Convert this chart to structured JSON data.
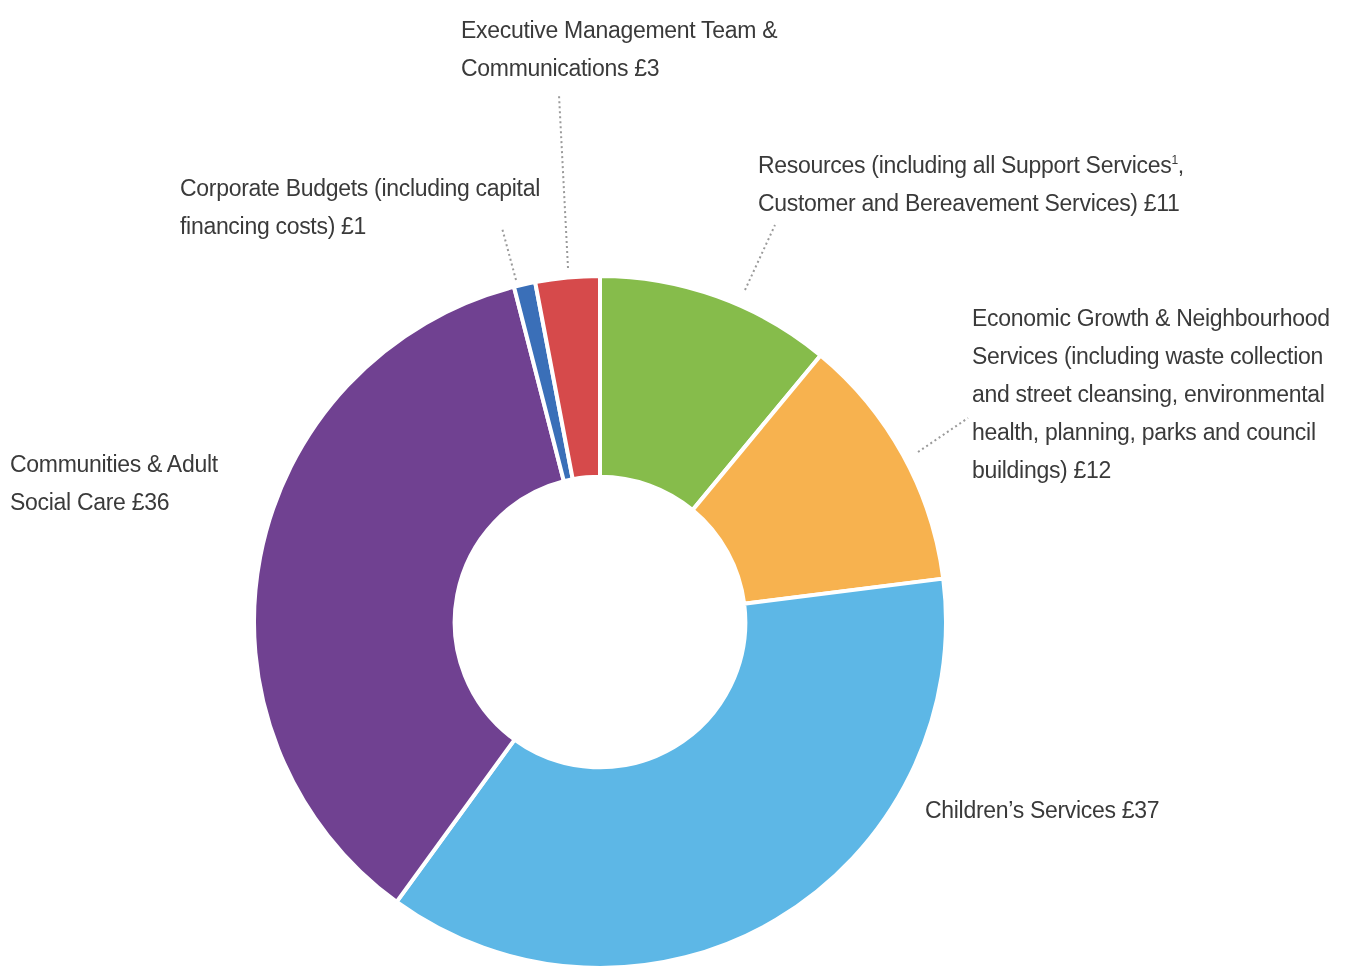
{
  "chart_data": {
    "type": "donut",
    "categories": [
      "Resources (including all Support Services$^{1}$, Customer and Bereavement Services)",
      "Economic Growth & Neighbourhood Services (including waste collection and street cleansing, environmental health, planning, parks and council buildings)",
      "Children’s Services",
      "Communities & Adult Social Care",
      "Corporate Budgets (including capital financing costs)",
      "Executive Management Team & Communications"
    ],
    "values": [
      11,
      12,
      37,
      36,
      1,
      3
    ],
    "value_labels": [
      "£11",
      "£12",
      "£37",
      "£36",
      "£1",
      "£3"
    ],
    "colors": [
      "#86bc4b",
      "#f7b24f",
      "#5db7e6",
      "#704191",
      "#3a6fb8",
      "#d64a4b"
    ]
  }
}
